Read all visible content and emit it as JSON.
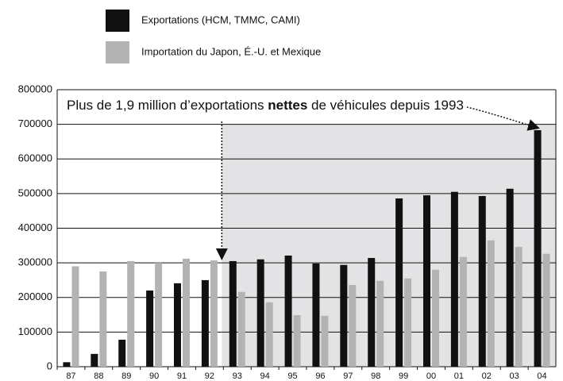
{
  "chart_data": {
    "type": "bar",
    "annotation": [
      "Plus de 1,9 million d’exportations ",
      "nettes",
      " de véhicules depuis 1993"
    ],
    "categories": [
      "87",
      "88",
      "89",
      "90",
      "91",
      "92",
      "93",
      "94",
      "95",
      "96",
      "97",
      "98",
      "99",
      "00",
      "01",
      "02",
      "03",
      "04"
    ],
    "series": [
      {
        "name": "Exportations (HCM, TMMC, CAMI)",
        "color": "#111111",
        "values": [
          13000,
          37000,
          78000,
          220000,
          241000,
          250000,
          305000,
          310000,
          321000,
          298000,
          294000,
          314000,
          486000,
          495000,
          505000,
          493000,
          514000,
          683000
        ]
      },
      {
        "name": "Importation du Japon, É.-U. et Mexique",
        "color": "#b3b3b3",
        "values": [
          290000,
          275000,
          305000,
          300000,
          312000,
          307000,
          216000,
          186000,
          149000,
          147000,
          236000,
          248000,
          255000,
          280000,
          317000,
          365000,
          346000,
          326000
        ]
      }
    ],
    "ylim": [
      0,
      800000
    ],
    "yticks": [
      0,
      100000,
      200000,
      300000,
      400000,
      500000,
      600000,
      700000,
      800000
    ],
    "grid": true
  }
}
